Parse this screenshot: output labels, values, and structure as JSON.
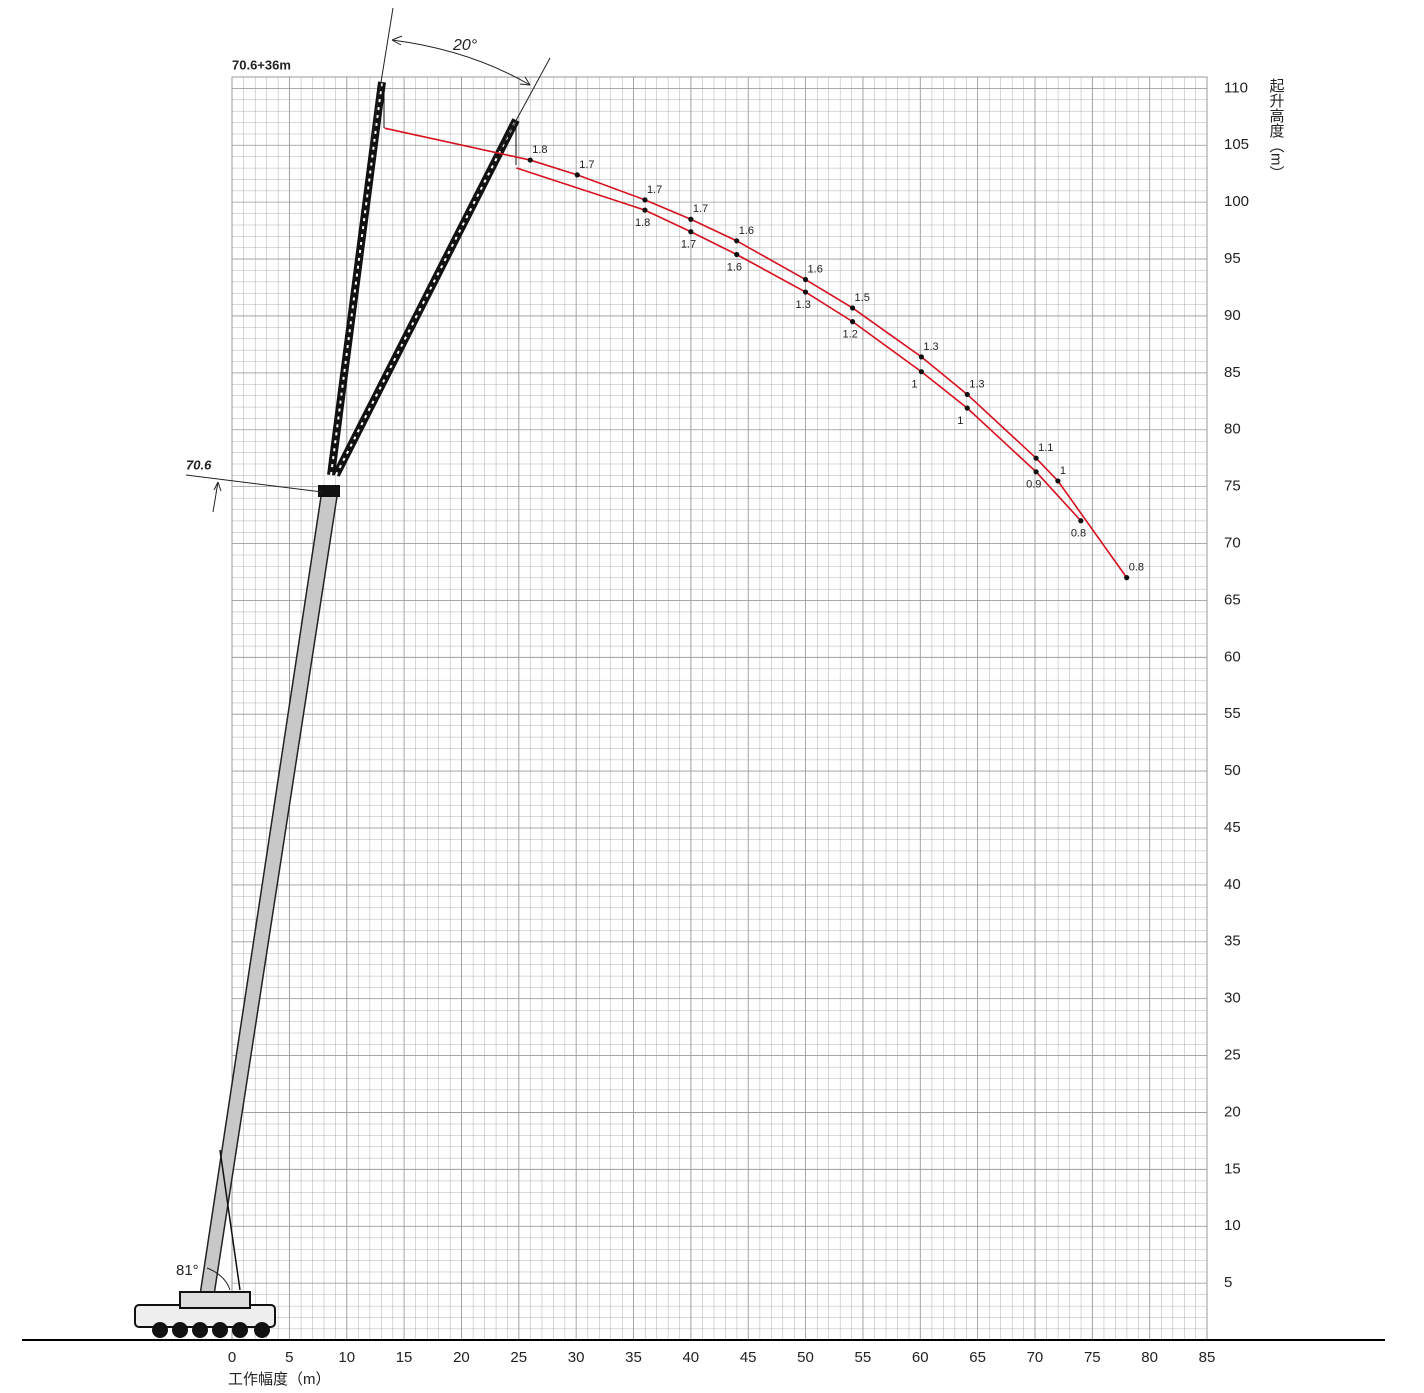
{
  "chart_data": {
    "type": "line",
    "title": "70.6+36m",
    "x_label": "工作幅度（m）",
    "y_label": "起升高度（m）",
    "annotations": {
      "jib_angle": "20°",
      "boom_angle": "81°",
      "boom_length": "70.6"
    },
    "xlim": [
      0,
      85
    ],
    "ylim": [
      0,
      111
    ],
    "xticks": [
      0,
      5,
      10,
      15,
      20,
      25,
      30,
      35,
      40,
      45,
      50,
      55,
      60,
      65,
      70,
      75,
      80,
      85
    ],
    "yticks": [
      5,
      10,
      15,
      20,
      25,
      30,
      35,
      40,
      45,
      50,
      55,
      60,
      65,
      70,
      75,
      80,
      85,
      90,
      95,
      100,
      105,
      110
    ],
    "grid": true,
    "series": [
      {
        "color": "#d7101e",
        "x": [
          13.3,
          26.0,
          30.1,
          36.0,
          40.0,
          44.0,
          50.0,
          54.1,
          60.1,
          64.1,
          70.1,
          72.0,
          78.0
        ],
        "values": [
          106.5,
          103.7,
          102.4,
          100.2,
          98.5,
          96.6,
          93.2,
          90.7,
          86.4,
          83.1,
          77.5,
          75.5,
          67.0
        ],
        "loads": [
          null,
          1.8,
          1.7,
          1.7,
          1.7,
          1.6,
          1.6,
          1.5,
          1.3,
          1.3,
          1.1,
          1,
          0.8
        ]
      },
      {
        "color": "#d7101e",
        "x": [
          24.8,
          36.0,
          40.0,
          44.0,
          50.0,
          54.1,
          60.1,
          64.1,
          70.1,
          74.0
        ],
        "values": [
          103.0,
          99.3,
          97.4,
          95.4,
          92.1,
          89.5,
          85.1,
          81.9,
          76.3,
          72.0
        ],
        "loads": [
          null,
          1.8,
          1.7,
          1.6,
          1.3,
          1.2,
          1,
          1,
          0.9,
          0.8
        ]
      }
    ]
  }
}
